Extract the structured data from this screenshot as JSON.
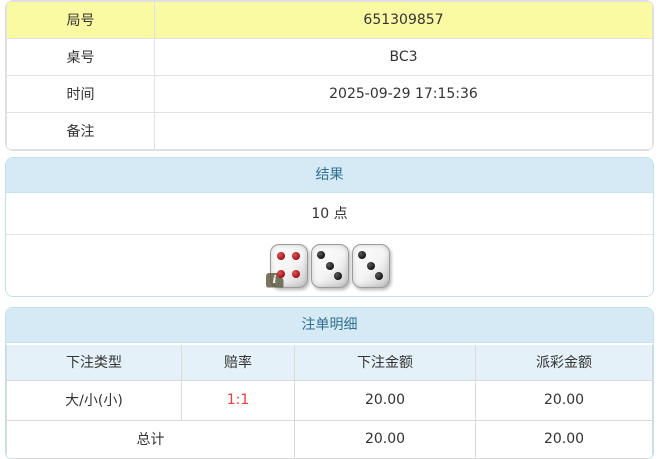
{
  "info_table": {
    "rows": [
      {
        "label": "局号",
        "value": "651309857",
        "highlight": true
      },
      {
        "label": "桌号",
        "value": "BC3",
        "highlight": false
      },
      {
        "label": "时间",
        "value": "2025-09-29 17:15:36",
        "highlight": false
      },
      {
        "label": "备注",
        "value": "",
        "highlight": false
      }
    ]
  },
  "result_panel": {
    "title": "结果",
    "points": "10 点",
    "dice": [
      {
        "value": 4,
        "color": "red"
      },
      {
        "value": 3,
        "color": "black"
      },
      {
        "value": 3,
        "color": "black"
      }
    ],
    "info_badge": "i"
  },
  "bets_panel": {
    "title": "注单明细",
    "columns": [
      "下注类型",
      "赔率",
      "下注金额",
      "派彩金额"
    ],
    "rows": [
      {
        "type": "大/小(小)",
        "odds": "1:1",
        "bet": "20.00",
        "payout": "20.00"
      }
    ],
    "total": {
      "label": "总计",
      "bet": "20.00",
      "payout": "20.00"
    }
  },
  "colors": {
    "highlight_yellow": "#fafaa2",
    "panel_header_bg": "#d5eaf4",
    "panel_header_text": "#31708f",
    "column_header_bg": "#e4f1f8",
    "odds_red": "#e8403a",
    "die_pip_red": "#9c0a15",
    "die_pip_black": "#101010"
  }
}
